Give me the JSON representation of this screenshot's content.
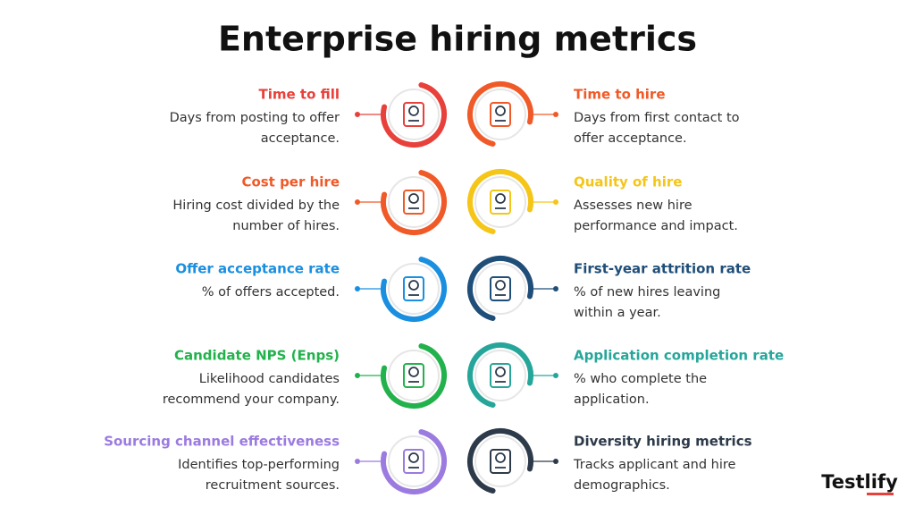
{
  "title": "Enterprise hiring metrics",
  "left": [
    {
      "title": "Time to fill",
      "description": [
        "Days from posting to offer",
        "acceptance."
      ],
      "color": "#e8403a"
    },
    {
      "title": "Cost per hire",
      "description": [
        "Hiring cost divided by the",
        "number of hires."
      ],
      "color": "#f05a28"
    },
    {
      "title": "Offer acceptance rate",
      "description": [
        "% of offers accepted."
      ],
      "color": "#1a8fe0"
    },
    {
      "title": "Candidate NPS (Enps)",
      "description": [
        "Likelihood candidates",
        "recommend your company."
      ],
      "color": "#22b24c"
    },
    {
      "title": "Sourcing channel effectiveness",
      "description": [
        "Identifies top-performing",
        "recruitment sources."
      ],
      "color": "#9b7be0"
    }
  ],
  "right": [
    {
      "title": "Time to hire",
      "description": [
        "Days from first contact to",
        "offer acceptance."
      ],
      "color": "#f05a28"
    },
    {
      "title": "Quality of hire",
      "description": [
        "Assesses new hire",
        "performance and impact."
      ],
      "color": "#f5c518"
    },
    {
      "title": "First-year attrition rate",
      "description": [
        "% of new hires leaving",
        "within a year."
      ],
      "color": "#1f4e79"
    },
    {
      "title": "Application completion rate",
      "description": [
        "% who complete the",
        "application."
      ],
      "color": "#26a69a"
    },
    {
      "title": "Diversity hiring metrics",
      "description": [
        "Tracks applicant and hire",
        "demographics."
      ],
      "color": "#2d3a4a"
    }
  ],
  "logo": "Testlify"
}
